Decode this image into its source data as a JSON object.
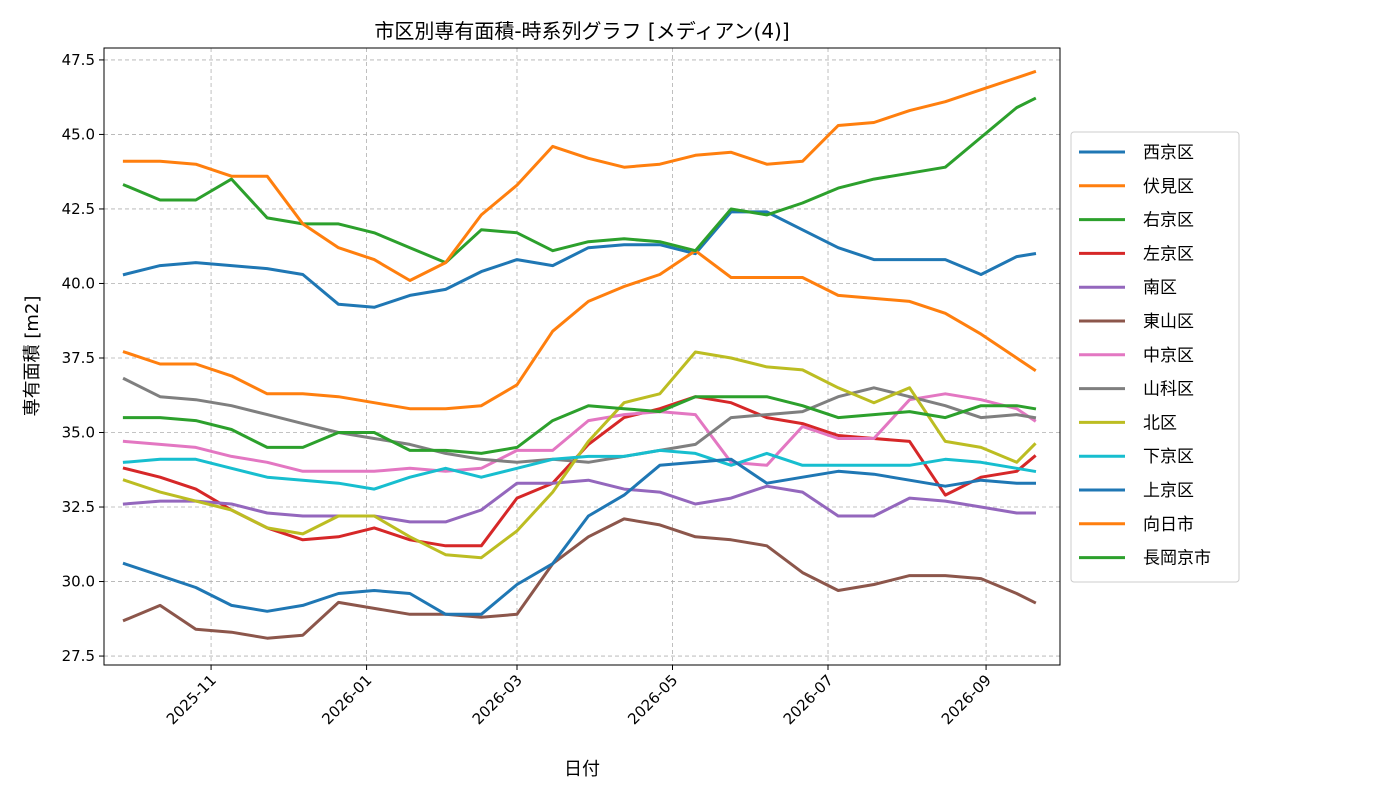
{
  "chart_data": {
    "type": "line",
    "title": "市区別専有面積-時系列グラフ [メディアン(4)]",
    "xlabel": "日付",
    "ylabel": "専有面積 [m2]",
    "xlim": [
      "2025-09-20",
      "2026-09-30"
    ],
    "ylim": [
      27.2,
      47.9
    ],
    "grid": true,
    "legend_position": "right",
    "x_ticks": [
      "2025-11-01",
      "2026-01-01",
      "2026-03-01",
      "2026-05-01",
      "2026-07-01",
      "2026-09-01"
    ],
    "x_tick_labels": [
      "2025-11",
      "2026-01",
      "2026-03",
      "2026-05",
      "2026-07",
      "2026-09"
    ],
    "y_ticks": [
      27.5,
      30.0,
      32.5,
      35.0,
      37.5,
      40.0,
      42.5,
      45.0,
      47.5
    ],
    "y_tick_labels": [
      "27.5",
      "30.0",
      "32.5",
      "35.0",
      "37.5",
      "40.0",
      "42.5",
      "45.0",
      "47.5"
    ],
    "x": [
      "2025-09-28",
      "2025-10-12",
      "2025-10-26",
      "2025-11-09",
      "2025-11-23",
      "2025-12-07",
      "2025-12-21",
      "2026-01-04",
      "2026-01-18",
      "2026-02-01",
      "2026-02-15",
      "2026-03-01",
      "2026-03-15",
      "2026-03-29",
      "2026-04-12",
      "2026-04-26",
      "2026-05-10",
      "2026-05-24",
      "2026-06-07",
      "2026-06-21",
      "2026-07-05",
      "2026-07-19",
      "2026-08-02",
      "2026-08-16",
      "2026-08-30",
      "2026-09-13",
      "2026-09-20"
    ],
    "series": [
      {
        "name": "西京区",
        "color": "#1f77b4",
        "values": [
          40.3,
          40.6,
          40.7,
          40.6,
          40.5,
          40.3,
          39.3,
          39.2,
          39.6,
          39.8,
          40.4,
          40.8,
          40.6,
          41.2,
          41.3,
          41.3,
          41.0,
          42.4,
          42.4,
          41.8,
          41.2,
          40.8,
          40.8,
          40.8,
          40.3,
          40.9,
          41.0
        ]
      },
      {
        "name": "伏見区",
        "color": "#ff7f0e",
        "values": [
          37.7,
          37.3,
          37.3,
          36.9,
          36.3,
          36.3,
          36.2,
          36.0,
          35.8,
          35.8,
          35.9,
          36.6,
          38.4,
          39.4,
          39.9,
          40.3,
          41.1,
          40.2,
          40.2,
          40.2,
          39.6,
          39.5,
          39.4,
          39.0,
          38.3,
          37.5,
          37.1
        ]
      },
      {
        "name": "右京区",
        "color": "#2ca02c",
        "values": [
          43.3,
          42.8,
          42.8,
          43.5,
          42.2,
          42.0,
          42.0,
          41.7,
          41.2,
          40.7,
          41.8,
          41.7,
          41.1,
          41.4,
          41.5,
          41.4,
          41.1,
          42.5,
          42.3,
          42.7,
          43.2,
          43.5,
          43.7,
          43.9,
          44.9,
          45.9,
          46.2
        ]
      },
      {
        "name": "左京区",
        "color": "#d62728",
        "values": [
          33.8,
          33.5,
          33.1,
          32.4,
          31.8,
          31.4,
          31.5,
          31.8,
          31.4,
          31.2,
          31.2,
          32.8,
          33.3,
          34.6,
          35.5,
          35.8,
          36.2,
          36.0,
          35.5,
          35.3,
          34.9,
          34.8,
          34.7,
          32.9,
          33.5,
          33.7,
          34.2
        ]
      },
      {
        "name": "南区",
        "color": "#9467bd",
        "values": [
          32.6,
          32.7,
          32.7,
          32.6,
          32.3,
          32.2,
          32.2,
          32.2,
          32.0,
          32.0,
          32.4,
          33.3,
          33.3,
          33.4,
          33.1,
          33.0,
          32.6,
          32.8,
          33.2,
          33.0,
          32.2,
          32.2,
          32.8,
          32.7,
          32.5,
          32.3,
          32.3
        ]
      },
      {
        "name": "東山区",
        "color": "#8c564b",
        "values": [
          28.7,
          29.2,
          28.4,
          28.3,
          28.1,
          28.2,
          29.3,
          29.1,
          28.9,
          28.9,
          28.8,
          28.9,
          30.6,
          31.5,
          32.1,
          31.9,
          31.5,
          31.4,
          31.2,
          30.3,
          29.7,
          29.9,
          30.2,
          30.2,
          30.1,
          29.6,
          29.3
        ]
      },
      {
        "name": "中京区",
        "color": "#e377c2",
        "values": [
          34.7,
          34.6,
          34.5,
          34.2,
          34.0,
          33.7,
          33.7,
          33.7,
          33.8,
          33.7,
          33.8,
          34.4,
          34.4,
          35.4,
          35.6,
          35.7,
          35.6,
          34.0,
          33.9,
          35.2,
          34.8,
          34.8,
          36.1,
          36.3,
          36.1,
          35.8,
          35.4
        ]
      },
      {
        "name": "山科区",
        "color": "#7f7f7f",
        "values": [
          36.8,
          36.2,
          36.1,
          35.9,
          35.6,
          35.3,
          35.0,
          34.8,
          34.6,
          34.3,
          34.1,
          34.0,
          34.1,
          34.0,
          34.2,
          34.4,
          34.6,
          35.5,
          35.6,
          35.7,
          36.2,
          36.5,
          36.2,
          35.9,
          35.5,
          35.6,
          35.5
        ]
      },
      {
        "name": "北区",
        "color": "#bcbd22",
        "values": [
          33.4,
          33.0,
          32.7,
          32.4,
          31.8,
          31.6,
          32.2,
          32.2,
          31.5,
          30.9,
          30.8,
          31.7,
          33.0,
          34.7,
          36.0,
          36.3,
          37.7,
          37.5,
          37.2,
          37.1,
          36.5,
          36.0,
          36.5,
          34.7,
          34.5,
          34.0,
          34.6
        ]
      },
      {
        "name": "下京区",
        "color": "#17becf",
        "values": [
          34.0,
          34.1,
          34.1,
          33.8,
          33.5,
          33.4,
          33.3,
          33.1,
          33.5,
          33.8,
          33.5,
          33.8,
          34.1,
          34.2,
          34.2,
          34.4,
          34.3,
          33.9,
          34.3,
          33.9,
          33.9,
          33.9,
          33.9,
          34.1,
          34.0,
          33.8,
          33.7
        ]
      },
      {
        "name": "上京区",
        "color": "#1f77b4",
        "values": [
          30.6,
          30.2,
          29.8,
          29.2,
          29.0,
          29.2,
          29.6,
          29.7,
          29.6,
          28.9,
          28.9,
          29.9,
          30.6,
          32.2,
          32.9,
          33.9,
          34.0,
          34.1,
          33.3,
          33.5,
          33.7,
          33.6,
          33.4,
          33.2,
          33.4,
          33.3,
          33.3
        ]
      },
      {
        "name": "向日市",
        "color": "#ff7f0e",
        "values": [
          44.1,
          44.1,
          44.0,
          43.6,
          43.6,
          42.0,
          41.2,
          40.8,
          40.1,
          40.7,
          42.3,
          43.3,
          44.6,
          44.2,
          43.9,
          44.0,
          44.3,
          44.4,
          44.0,
          44.1,
          45.3,
          45.4,
          45.8,
          46.1,
          46.5,
          46.9,
          47.1
        ]
      },
      {
        "name": "長岡京市",
        "color": "#2ca02c",
        "values": [
          35.5,
          35.5,
          35.4,
          35.1,
          34.5,
          34.5,
          35.0,
          35.0,
          34.4,
          34.4,
          34.3,
          34.5,
          35.4,
          35.9,
          35.8,
          35.7,
          36.2,
          36.2,
          36.2,
          35.9,
          35.5,
          35.6,
          35.7,
          35.5,
          35.9,
          35.9,
          35.8
        ]
      }
    ]
  }
}
